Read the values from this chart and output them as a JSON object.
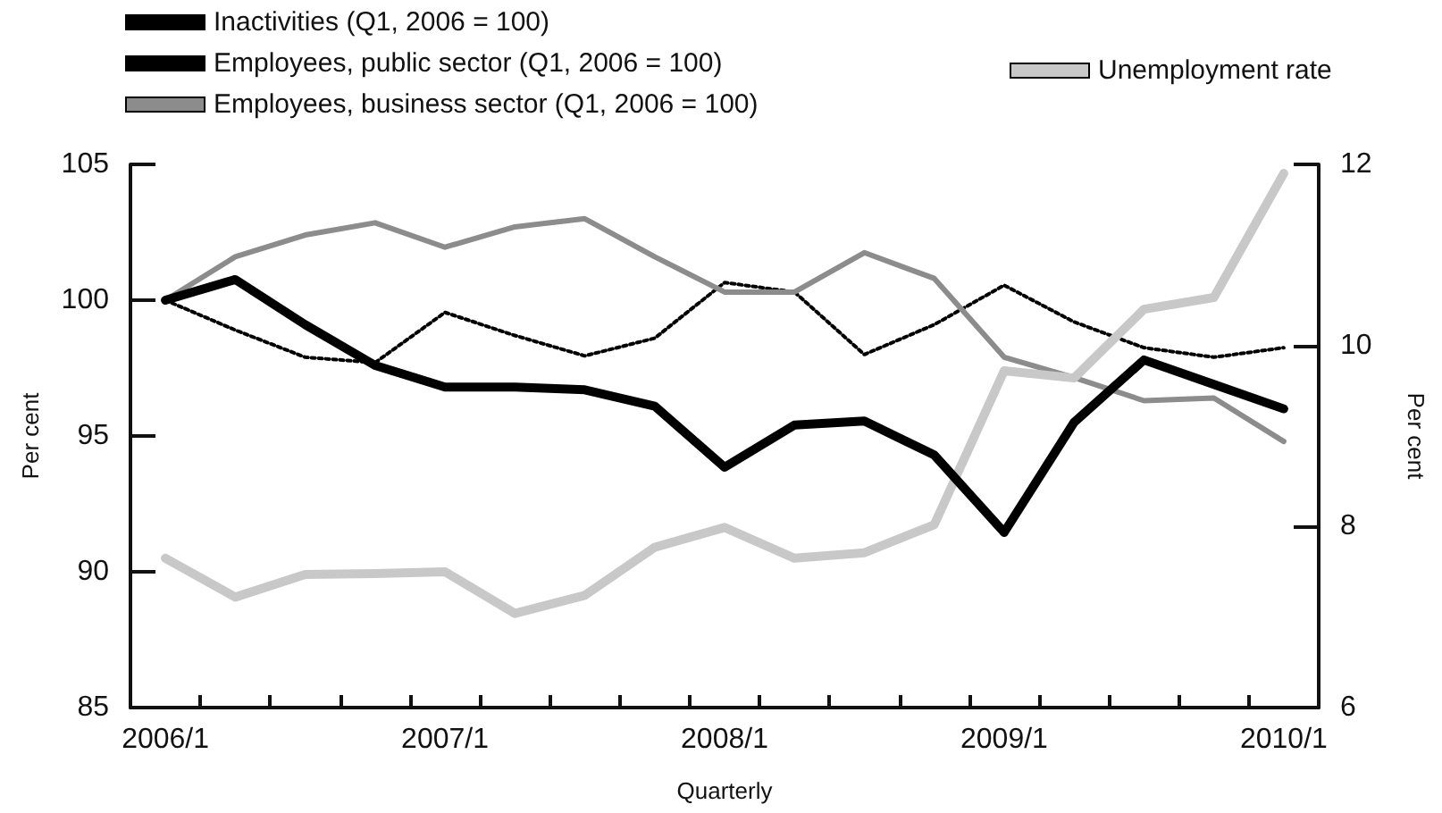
{
  "chart_data": {
    "type": "line",
    "xlabel": "Quarterly",
    "ylabel": "Per cent",
    "y2label": "Per cent",
    "categories": [
      "2006/1",
      null,
      null,
      null,
      "2007/1",
      null,
      null,
      null,
      "2008/1",
      null,
      null,
      null,
      "2009/1",
      null,
      null,
      null,
      "2010/1"
    ],
    "series": [
      {
        "name": "Inactivities (Q1, 2006 = 100)",
        "color": "#000000",
        "line_style": "dotted",
        "values": [
          100,
          98.9,
          97.9,
          97.7,
          99.55,
          98.7,
          97.95,
          98.6,
          100.65,
          100.3,
          98.0,
          99.1,
          100.55,
          99.2,
          98.25,
          97.9,
          98.25
        ]
      },
      {
        "name": "Employees, public sector (Q1, 2006 = 100)",
        "color": "#000000",
        "line_style": "solid",
        "values": [
          100,
          100.76,
          99.1,
          97.6,
          96.8,
          96.8,
          96.7,
          96.1,
          93.85,
          95.4,
          95.55,
          94.3,
          91.45,
          95.5,
          97.8,
          96.9,
          96.0
        ]
      },
      {
        "name": "Employees, business sector (Q1, 2006 = 100)",
        "color": "#8c8c8c",
        "line_style": "solid",
        "values": [
          100,
          101.6,
          102.4,
          102.85,
          101.95,
          102.7,
          103.0,
          101.6,
          100.3,
          100.3,
          101.75,
          100.8,
          97.9,
          97.15,
          96.3,
          96.4,
          94.8
        ]
      },
      {
        "name": "Unemployment rate",
        "color": "#c8c8c8",
        "line_style": "solid",
        "axis": "y2",
        "values": [
          7.65,
          7.22,
          7.47,
          7.48,
          7.5,
          7.04,
          7.24,
          7.77,
          7.99,
          7.65,
          7.71,
          8.02,
          9.72,
          9.64,
          10.4,
          10.53,
          11.9
        ]
      }
    ],
    "ylim": [
      85,
      105
    ],
    "yticks": [
      85,
      90,
      95,
      100,
      105
    ],
    "y2lim": [
      6,
      12
    ],
    "y2ticks": [
      6,
      8,
      10,
      12
    ],
    "grid": false,
    "legend": "top",
    "marker": "none"
  }
}
